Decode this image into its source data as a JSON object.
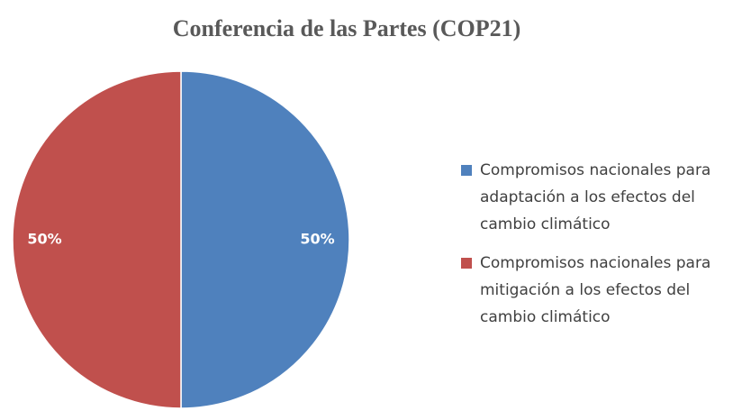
{
  "chart_data": {
    "type": "pie",
    "title": "Conferencia de las Partes (COP21)",
    "series": [
      {
        "name": "Compromisos nacionales para adaptación a los efectos del cambio climático",
        "color": "#4f81bd"
      },
      {
        "name": "Compromisos nacionales para mitigación a los efectos del cambio climático",
        "color": "#c0504d"
      }
    ],
    "values": [
      50,
      50
    ],
    "value_labels": [
      "50%",
      "50%"
    ],
    "legend": "right"
  }
}
